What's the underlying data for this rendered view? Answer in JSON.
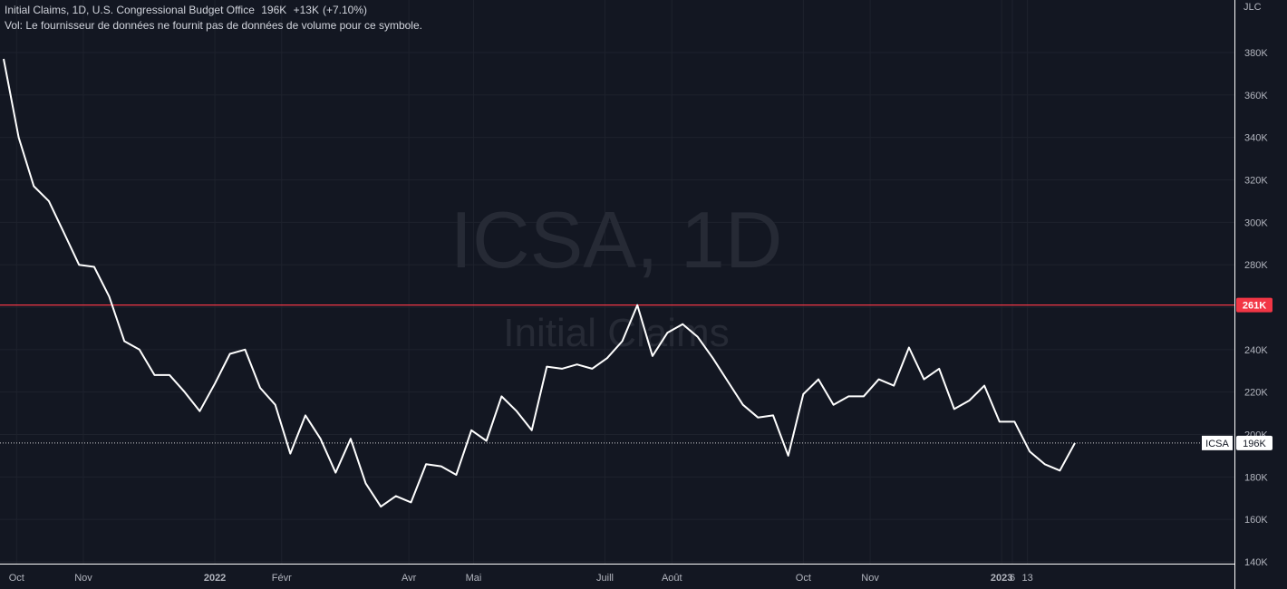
{
  "header": {
    "title": "Initial Claims, 1D, U.S. Congressional Budget Office",
    "last_value": "196K",
    "change": "+13K",
    "change_pct": "(+7.10%)",
    "volume_note": "Vol: Le fournisseur de données ne fournit pas de données de volume pour ce symbole."
  },
  "watermark": {
    "symbol": "ICSA, 1D",
    "name": "Initial Claims"
  },
  "corner_label": "JLC",
  "colors": {
    "background": "#131722",
    "line": "#ffffff",
    "hline": "#f23645",
    "grid": "#1e222d",
    "axis_text": "#b2b5be"
  },
  "chart_data": {
    "type": "line",
    "title": "Initial Claims",
    "ylim": [
      140000,
      380000
    ],
    "yticks": [
      "140K",
      "160K",
      "180K",
      "200K",
      "220K",
      "240K",
      "260K",
      "280K",
      "300K",
      "320K",
      "340K",
      "360K",
      "380K"
    ],
    "ytick_values": [
      140000,
      160000,
      180000,
      200000,
      220000,
      240000,
      260000,
      280000,
      300000,
      320000,
      340000,
      360000,
      380000
    ],
    "xticks": [
      {
        "label": "Oct",
        "date": "2021-10-01",
        "bold": false
      },
      {
        "label": "Nov",
        "date": "2021-11-01",
        "bold": false
      },
      {
        "label": "2022",
        "date": "2022-01-01",
        "bold": true
      },
      {
        "label": "Févr",
        "date": "2022-02-01",
        "bold": false
      },
      {
        "label": "Avr",
        "date": "2022-04-01",
        "bold": false
      },
      {
        "label": "Mai",
        "date": "2022-05-01",
        "bold": false
      },
      {
        "label": "Juill",
        "date": "2022-07-01",
        "bold": false
      },
      {
        "label": "Août",
        "date": "2022-08-01",
        "bold": false
      },
      {
        "label": "Oct",
        "date": "2022-10-01",
        "bold": false
      },
      {
        "label": "Nov",
        "date": "2022-11-01",
        "bold": false
      },
      {
        "label": "2023",
        "date": "2023-01-01",
        "bold": true
      },
      {
        "label": "6",
        "date": "2023-01-06",
        "bold": false
      },
      {
        "label": "13",
        "date": "2023-01-13",
        "bold": false
      }
    ],
    "series": [
      {
        "name": "ICSA",
        "x": [
          "2021-09-25",
          "2021-10-02",
          "2021-10-09",
          "2021-10-16",
          "2021-10-23",
          "2021-10-30",
          "2021-11-06",
          "2021-11-13",
          "2021-11-20",
          "2021-11-27",
          "2021-12-04",
          "2021-12-11",
          "2021-12-18",
          "2021-12-25",
          "2022-01-01",
          "2022-01-08",
          "2022-01-15",
          "2022-01-22",
          "2022-01-29",
          "2022-02-05",
          "2022-02-12",
          "2022-02-19",
          "2022-02-26",
          "2022-03-05",
          "2022-03-12",
          "2022-03-19",
          "2022-03-26",
          "2022-04-02",
          "2022-04-09",
          "2022-04-16",
          "2022-04-23",
          "2022-04-30",
          "2022-05-07",
          "2022-05-14",
          "2022-05-21",
          "2022-05-28",
          "2022-06-04",
          "2022-06-11",
          "2022-06-18",
          "2022-06-25",
          "2022-07-02",
          "2022-07-09",
          "2022-07-16",
          "2022-07-23",
          "2022-07-30",
          "2022-08-06",
          "2022-08-13",
          "2022-08-20",
          "2022-08-27",
          "2022-09-03",
          "2022-09-10",
          "2022-09-17",
          "2022-09-24",
          "2022-10-01",
          "2022-10-08",
          "2022-10-15",
          "2022-10-22",
          "2022-10-29",
          "2022-11-05",
          "2022-11-12",
          "2022-11-19",
          "2022-11-26",
          "2022-12-03",
          "2022-12-10",
          "2022-12-17",
          "2022-12-24",
          "2022-12-31",
          "2023-01-07",
          "2023-01-14",
          "2023-01-21",
          "2023-01-28",
          "2023-02-04"
        ],
        "values": [
          377000,
          340000,
          317000,
          310000,
          295000,
          280000,
          279000,
          265000,
          244000,
          240000,
          228000,
          228000,
          220000,
          211000,
          224000,
          238000,
          240000,
          222000,
          214000,
          191000,
          209000,
          198000,
          182000,
          198000,
          177000,
          166000,
          171000,
          168000,
          186000,
          185000,
          181000,
          202000,
          197000,
          218000,
          211000,
          202000,
          232000,
          231000,
          233000,
          231000,
          236000,
          244000,
          261000,
          237000,
          248000,
          252000,
          246000,
          236000,
          225000,
          214000,
          208000,
          209000,
          190000,
          219000,
          226000,
          214000,
          218000,
          218000,
          226000,
          223000,
          241000,
          226000,
          231000,
          212000,
          216000,
          223000,
          206000,
          206000,
          192000,
          186000,
          183000,
          196000
        ]
      }
    ],
    "hline": {
      "value": 261000,
      "label": "261K"
    },
    "last_label": {
      "name": "ICSA",
      "value": "196K"
    },
    "grid": true
  }
}
